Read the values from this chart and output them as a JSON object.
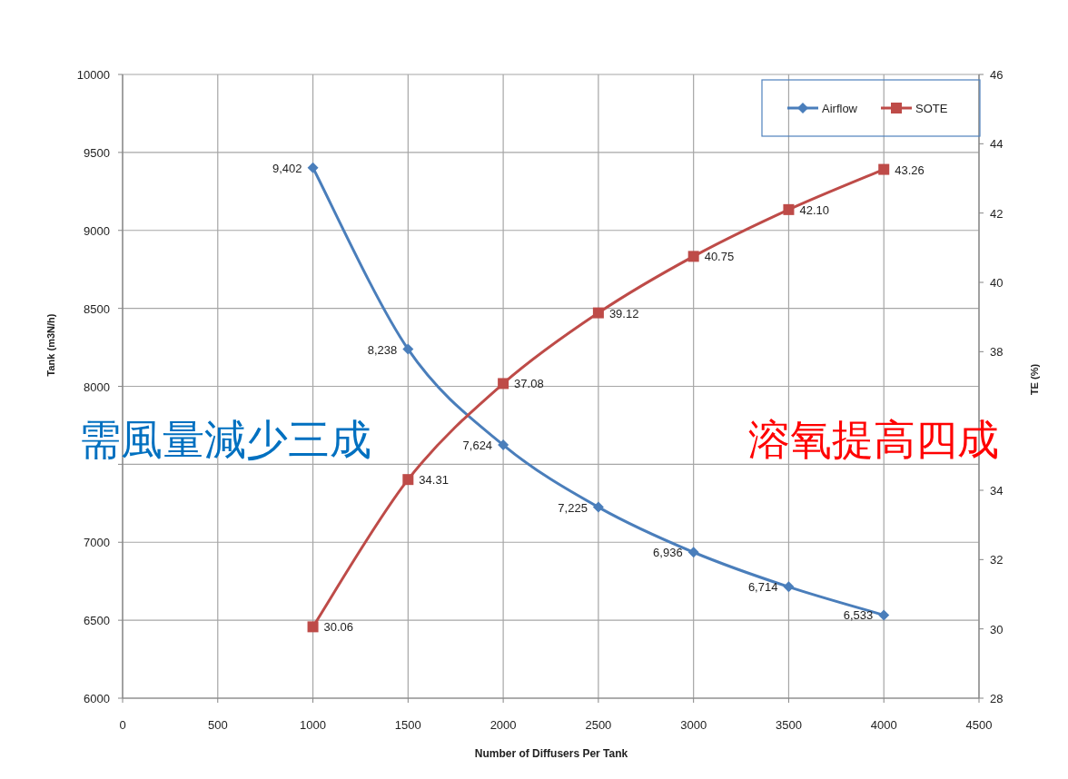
{
  "chart_data": {
    "type": "line",
    "xlabel": "Number of Diffusers Per Tank",
    "ylabel": "Tank (m3N/h)",
    "y2label": "TE (%)",
    "x": [
      1000,
      1500,
      2000,
      2500,
      3000,
      3500,
      4000
    ],
    "xlim": [
      0,
      4500
    ],
    "xticks": [
      0,
      500,
      1000,
      1500,
      2000,
      2500,
      3000,
      3500,
      4000,
      4500
    ],
    "ylim": [
      6000,
      10000
    ],
    "yticks": [
      6000,
      6500,
      7000,
      {
        "value": 7500,
        "label": null
      },
      8000,
      8500,
      9000,
      9500,
      10000
    ],
    "y2lim": [
      28,
      46
    ],
    "y2ticks": [
      28,
      30,
      32,
      34,
      {
        "value": 36,
        "label": null
      },
      38,
      40,
      42,
      44,
      46
    ],
    "grid": true,
    "legend": "top right",
    "series": [
      {
        "name": "Airflow",
        "color": "#4a7ebb",
        "marker": "diamond",
        "values": [
          9402,
          8238,
          7624,
          7225,
          6936,
          6714,
          6533
        ],
        "value_labels": [
          "9,402",
          "8,238",
          "7,624",
          "7,225",
          "6,936",
          "6,714",
          "6,533"
        ]
      },
      {
        "name": "SOTE",
        "color": "#be4b48",
        "marker": "square",
        "axis": "y2",
        "values": [
          30.06,
          34.31,
          37.08,
          39.12,
          40.75,
          42.1,
          43.26
        ],
        "value_labels": [
          "30.06",
          "34.31",
          "37.08",
          "39.12",
          "40.75",
          "42.10",
          "43.26"
        ]
      }
    ],
    "annotations": [
      "需風量減少三成",
      "溶氧提高四成"
    ]
  }
}
